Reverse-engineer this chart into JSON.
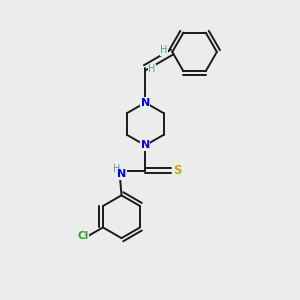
{
  "background_color": "#ececec",
  "bond_color": "#1a1a1a",
  "N_color": "#0000ff",
  "S_color": "#ccaa00",
  "Cl_color": "#22aa22",
  "H_color": "#5a9a9a",
  "figsize": [
    3.0,
    3.0
  ],
  "dpi": 100,
  "xlim": [
    0,
    10
  ],
  "ylim": [
    0,
    10
  ]
}
